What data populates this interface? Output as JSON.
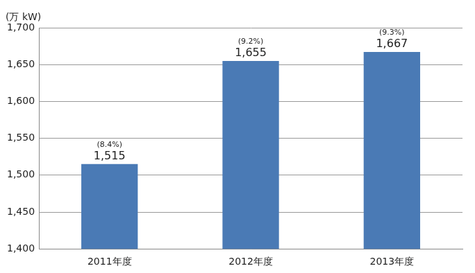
{
  "chart_data": {
    "type": "bar",
    "y_label": "(万 kW)",
    "categories": [
      "2011年度",
      "2012年度",
      "2013年度"
    ],
    "values": [
      1515,
      1655,
      1667
    ],
    "value_labels": [
      "1,515",
      "1,655",
      "1,667"
    ],
    "data_labels": true,
    "shares": [
      8.4,
      9.2,
      9.3
    ],
    "share_labels": [
      "(8.4%)",
      "(9.2%)",
      "(9.3%)"
    ],
    "color": "#4a7ab5",
    "ylim": [
      1400,
      1700
    ],
    "yticks": [
      {
        "value": 1400,
        "label": "1,400"
      },
      {
        "value": 1450,
        "label": "1,450"
      },
      {
        "value": 1500,
        "label": "1,500"
      },
      {
        "value": 1550,
        "label": "1,550"
      },
      {
        "value": 1600,
        "label": "1,600"
      },
      {
        "value": 1650,
        "label": "1,650"
      },
      {
        "value": 1700,
        "label": "1,700"
      }
    ],
    "grid": true
  }
}
